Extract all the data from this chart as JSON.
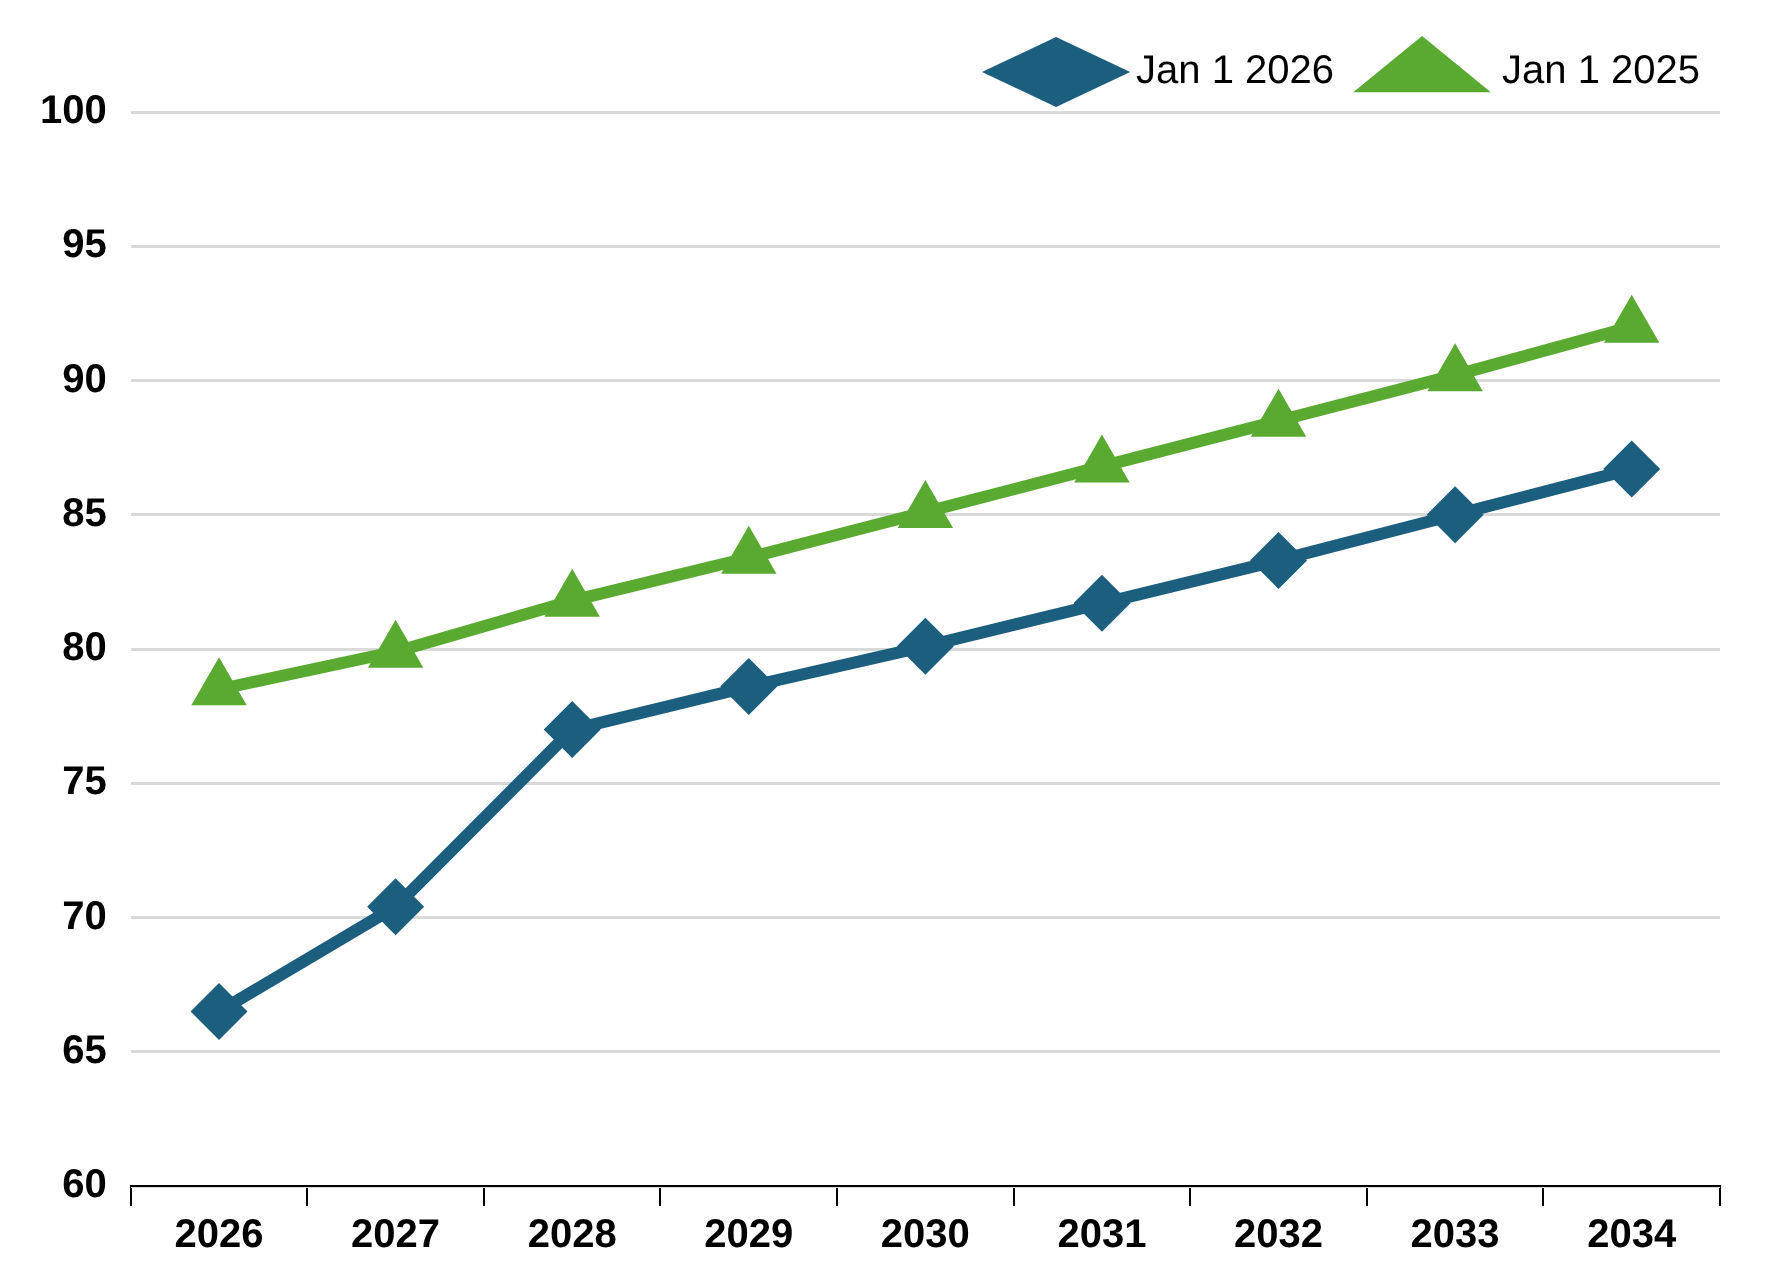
{
  "chart_data": {
    "type": "line",
    "categories": [
      "2026",
      "2027",
      "2028",
      "2029",
      "2030",
      "2031",
      "2032",
      "2033",
      "2034"
    ],
    "series": [
      {
        "name": "Jan 1 2026",
        "color": "#1b5e7e",
        "marker": "diamond",
        "values": [
          66.5,
          70.4,
          77.0,
          78.6,
          80.1,
          81.7,
          83.3,
          85.0,
          86.7
        ]
      },
      {
        "name": "Jan 1 2025",
        "color": "#5aaa32",
        "marker": "triangle",
        "values": [
          78.5,
          79.9,
          81.8,
          83.4,
          85.1,
          86.8,
          88.5,
          90.2,
          92.0
        ]
      }
    ],
    "ylim": [
      60,
      100
    ],
    "yticks": [
      60,
      65,
      70,
      75,
      80,
      85,
      90,
      95,
      100
    ],
    "grid": "y",
    "legend": "top right"
  }
}
